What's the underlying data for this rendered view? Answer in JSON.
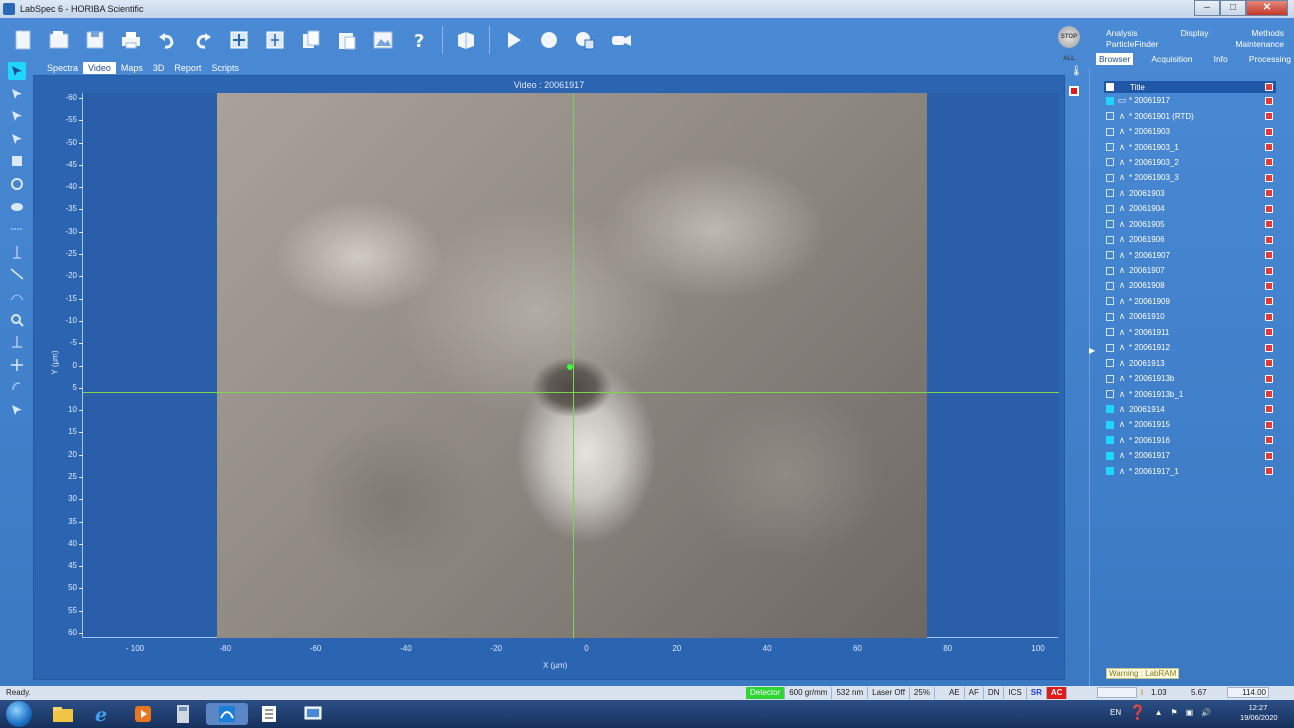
{
  "window": {
    "title": "LabSpec 6 - HORIBA Scientific",
    "min": "–",
    "max": "□",
    "close": "✕"
  },
  "toolbar": {
    "icons": [
      "new-icon",
      "open-icon",
      "save-icon",
      "print-icon",
      "undo-icon",
      "redo-icon",
      "zoom-fit-icon",
      "cursor-icon",
      "copy-icon",
      "paste-icon",
      "image-icon",
      "help-icon",
      "instrument-icon",
      "play-icon",
      "record-icon",
      "camera-grid-icon",
      "video-camera-icon"
    ],
    "stop_all": "STOP ALL"
  },
  "left_tools": [
    "pointer-tool-icon",
    "select-tool-icon",
    "select-tool-icon",
    "select-tool-icon",
    "rectangle-tool-icon",
    "circle-tool-icon",
    "polygon-tool-icon",
    "hline-tool-icon",
    "vline-tool-icon",
    "line-tool-icon",
    "curve-tool-icon",
    "zoom-tool-icon",
    "measure-tool-icon",
    "move-tool-icon",
    "rotate-tool-icon",
    "lasso-tool-icon"
  ],
  "tabs": [
    "Spectra",
    "Video",
    "Maps",
    "3D",
    "Report",
    "Scripts"
  ],
  "active_tab": "Video",
  "video": {
    "title": "Video : 20061917",
    "y_label": "Y (µm)",
    "x_label": "X (µm)",
    "y_ticks": [
      "-60",
      "-55",
      "-50",
      "-45",
      "-40",
      "-35",
      "-30",
      "-25",
      "-20",
      "-15",
      "-10",
      "-5",
      "0",
      "5",
      "10",
      "15",
      "20",
      "25",
      "30",
      "35",
      "40",
      "45",
      "50",
      "55",
      "60"
    ],
    "x_ticks": [
      "- 100",
      "-80",
      "-60",
      "-40",
      "-20",
      "0",
      "20",
      "40",
      "60",
      "80",
      "100"
    ]
  },
  "right_menu": {
    "row1": [
      "Analysis",
      "Display",
      "Methods"
    ],
    "row2": [
      "ParticleFinder",
      "Maintenance"
    ]
  },
  "right_tabs": [
    "Browser",
    "Acquisition",
    "Info",
    "Processing"
  ],
  "active_right_tab": "Browser",
  "browser": {
    "header": "Title",
    "items": [
      {
        "name": "* 20061917",
        "icon": "video-icon",
        "checked": true
      },
      {
        "name": "* 20061901 (RTD)",
        "icon": "spectrum-icon",
        "checked": false
      },
      {
        "name": "* 20061903",
        "icon": "spectrum-icon",
        "checked": false
      },
      {
        "name": "* 20061903_1",
        "icon": "spectrum-icon",
        "checked": false
      },
      {
        "name": "* 20061903_2",
        "icon": "spectrum-icon",
        "checked": false
      },
      {
        "name": "* 20061903_3",
        "icon": "spectrum-icon",
        "checked": false
      },
      {
        "name": "  20061903",
        "icon": "spectrum-icon",
        "checked": false
      },
      {
        "name": "  20061904",
        "icon": "spectrum-icon",
        "checked": false
      },
      {
        "name": "  20061905",
        "icon": "spectrum-icon",
        "checked": false
      },
      {
        "name": "  20061906",
        "icon": "spectrum-icon",
        "checked": false
      },
      {
        "name": "* 20061907",
        "icon": "spectrum-icon",
        "checked": false
      },
      {
        "name": "  20061907",
        "icon": "spectrum-icon",
        "checked": false
      },
      {
        "name": "  20061908",
        "icon": "spectrum-icon",
        "checked": false
      },
      {
        "name": "* 20061909",
        "icon": "spectrum-icon",
        "checked": false
      },
      {
        "name": "  20061910",
        "icon": "spectrum-icon",
        "checked": false
      },
      {
        "name": "* 20061911",
        "icon": "spectrum-icon",
        "checked": false
      },
      {
        "name": "* 20061912",
        "icon": "spectrum-icon",
        "checked": false
      },
      {
        "name": "  20061913",
        "icon": "spectrum-icon",
        "checked": false
      },
      {
        "name": "* 20061913b",
        "icon": "spectrum-icon",
        "checked": false
      },
      {
        "name": "* 20061913b_1",
        "icon": "spectrum-icon",
        "checked": false
      },
      {
        "name": "  20061914",
        "icon": "spectrum-icon",
        "checked": true
      },
      {
        "name": "* 20061915",
        "icon": "spectrum-icon",
        "checked": true
      },
      {
        "name": "* 20061916",
        "icon": "spectrum-icon",
        "checked": true
      },
      {
        "name": "* 20061917",
        "icon": "spectrum-icon",
        "checked": true
      },
      {
        "name": "* 20061917_1",
        "icon": "spectrum-icon",
        "checked": true
      }
    ]
  },
  "warning": "Warning : LabRAM",
  "status": {
    "ready": "Ready.",
    "detector": "Detector",
    "grating": "600 gr/mm",
    "laser_wl": "532 nm",
    "laser_state": "Laser Off",
    "filter": "25%",
    "flags": [
      "AE",
      "AF",
      "DN",
      "ICS"
    ],
    "sr": "SR",
    "ac": "AC",
    "info_icon": "i",
    "v1": "1.03",
    "v2": "5.67",
    "v3": "114.00"
  },
  "taskbar": {
    "apps": [
      "explorer-icon",
      "ie-icon",
      "media-player-icon",
      "calculator-icon",
      "labspec-icon",
      "documents-icon",
      "screen-icon"
    ],
    "lang": "EN",
    "time": "12:27",
    "date": "19/06/2020"
  },
  "colors": {
    "accent": "#1fd6ff",
    "crosshair": "#7bd64f",
    "panel": "#2b64b1",
    "detector_green": "#2ed634",
    "ac_red": "#e01919"
  }
}
